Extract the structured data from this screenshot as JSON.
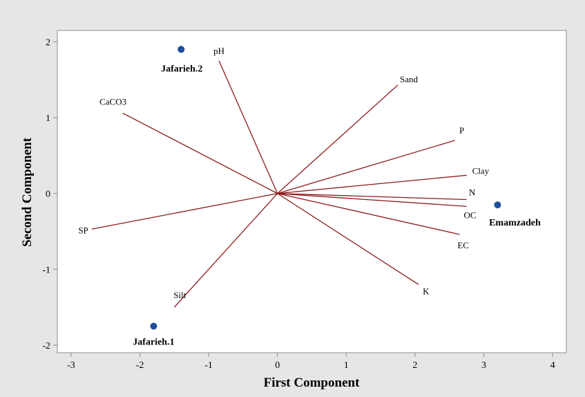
{
  "chart_data": {
    "type": "scatter",
    "subtype": "biplot",
    "title": "",
    "xlabel": "First Component",
    "ylabel": "Second Component",
    "xlim": [
      -3.2,
      4.2
    ],
    "ylim": [
      -2.1,
      2.15
    ],
    "xticks": [
      -3,
      -2,
      -1,
      0,
      1,
      2,
      3,
      4
    ],
    "yticks": [
      -2,
      -1,
      0,
      1,
      2
    ],
    "grid": false,
    "legend": "none",
    "colors": {
      "plot_background": "#ffffff",
      "outer_background": "#e6e6e6",
      "vector": "#8b1a1a",
      "point": "#1f4e9c",
      "frame": "#8c8c8c"
    },
    "points": [
      {
        "label": "Jafarieh.2",
        "x": -1.4,
        "y": 1.9
      },
      {
        "label": "Jafarieh.1",
        "x": -1.8,
        "y": -1.75
      },
      {
        "label": "Emamzadeh",
        "x": 3.2,
        "y": -0.15
      }
    ],
    "vectors": [
      {
        "label": "pH",
        "x": -0.85,
        "y": 1.75
      },
      {
        "label": "Sand",
        "x": 1.75,
        "y": 1.43
      },
      {
        "label": "CaCO3",
        "x": -2.25,
        "y": 1.06
      },
      {
        "label": "P",
        "x": 2.58,
        "y": 0.7
      },
      {
        "label": "Clay",
        "x": 2.75,
        "y": 0.24
      },
      {
        "label": "N",
        "x": 2.75,
        "y": -0.08
      },
      {
        "label": "OC",
        "x": 2.75,
        "y": -0.17
      },
      {
        "label": "EC",
        "x": 2.65,
        "y": -0.54
      },
      {
        "label": "K",
        "x": 2.05,
        "y": -1.2
      },
      {
        "label": "Silt",
        "x": -1.5,
        "y": -1.5
      },
      {
        "label": "SP",
        "x": -2.7,
        "y": -0.47
      }
    ]
  }
}
